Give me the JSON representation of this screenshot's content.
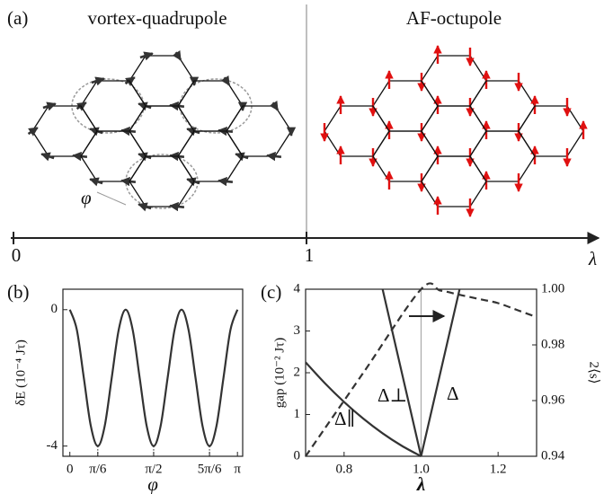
{
  "panel_a": {
    "label": "(a)",
    "left_title": "vortex-quadrupole",
    "right_title": "AF-octupole",
    "angle_label": "φ",
    "axis": {
      "ticks": [
        0,
        1
      ],
      "label": "λ"
    }
  },
  "chart_data": [
    {
      "type": "line",
      "panel_label": "(b)",
      "x_label": "φ",
      "y_label": "δE (10⁻⁴ Jτ)",
      "x": [
        0,
        0.131,
        0.262,
        0.393,
        0.524,
        0.654,
        0.785,
        0.916,
        1.047,
        1.178,
        1.309,
        1.44,
        1.571,
        1.702,
        1.833,
        1.963,
        2.094,
        2.225,
        2.356,
        2.487,
        2.618,
        2.749,
        2.88,
        3.011,
        3.142
      ],
      "series": [
        {
          "color": "#333333",
          "values": [
            0,
            -0.59,
            -2,
            -3.41,
            -4,
            -3.41,
            -2,
            -0.59,
            0,
            -0.59,
            -2,
            -3.41,
            -4,
            -3.41,
            -2,
            -0.59,
            0,
            -0.59,
            -2,
            -3.41,
            -4,
            -3.41,
            -2,
            -0.59,
            0
          ]
        }
      ],
      "xlim": [
        -0.13,
        3.24
      ],
      "ylim": [
        -4.3,
        0.6
      ],
      "xticks": [
        0,
        {
          "value": 0.524,
          "label": "π/6"
        },
        {
          "value": 1.571,
          "label": "π/2"
        },
        {
          "value": 2.618,
          "label": "5π/6"
        },
        {
          "value": 3.142,
          "label": "π"
        }
      ],
      "yticks": [
        0,
        -4
      ]
    },
    {
      "type": "line",
      "panel_label": "(c)",
      "x_label": "λ",
      "y_label": "gap (10⁻² Jτ)",
      "y2_label": "2⟨s⟩",
      "series": [
        {
          "name": "Δ∥",
          "color": "#333333",
          "style": "solid",
          "x": [
            0.7,
            0.75,
            0.8,
            0.85,
            0.9,
            0.95,
            1.0
          ],
          "values": [
            2.25,
            1.75,
            1.3,
            0.9,
            0.55,
            0.25,
            0
          ]
        },
        {
          "name": "Δ⊥",
          "color": "#333333",
          "style": "solid",
          "x": [
            0.9,
            1.0
          ],
          "values": [
            4,
            0
          ]
        },
        {
          "name": "Δ",
          "color": "#333333",
          "style": "solid",
          "x": [
            1.0,
            1.1
          ],
          "values": [
            0,
            4
          ]
        },
        {
          "color": "#333333",
          "style": "dashed",
          "axis": "y2",
          "x": [
            0.7,
            0.85,
            1.0,
            1.05,
            1.1,
            1.15,
            1.2,
            1.25,
            1.3
          ],
          "values": [
            0.94,
            0.97,
            1.0,
            0.9995,
            0.998,
            0.9965,
            0.995,
            0.9925,
            0.99
          ]
        }
      ],
      "vlines": [
        1
      ],
      "xlim": [
        0.7,
        1.3
      ],
      "ylim": [
        0,
        4
      ],
      "y2lim": [
        0.94,
        1.0
      ],
      "xticks": [
        0.8,
        {
          "value": 1,
          "label": "1.0"
        },
        1.2
      ],
      "yticks": [
        0,
        1,
        2,
        3,
        4
      ],
      "y2ticks": [
        0.94,
        0.96,
        0.98,
        {
          "value": 1,
          "label": "1.00"
        }
      ]
    }
  ]
}
